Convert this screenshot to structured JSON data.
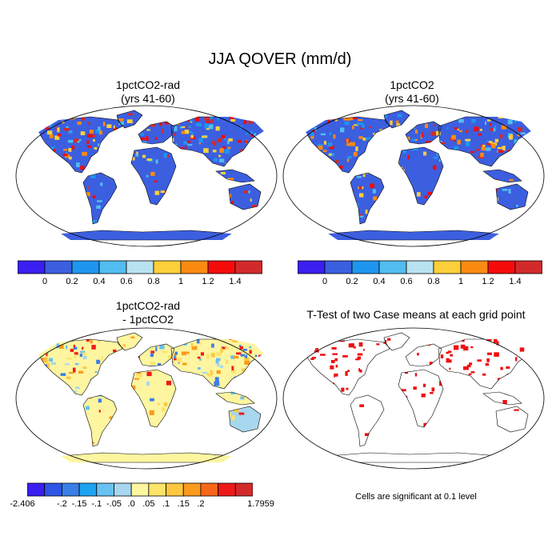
{
  "main_title": "JJA QOVER (mm/d)",
  "panels": [
    {
      "title": "1pctCO2-rad\n(yrs 41-60)",
      "scheme": "abs"
    },
    {
      "title": "1pctCO2\n(yrs 41-60)",
      "scheme": "abs"
    },
    {
      "title": "1pctCO2-rad\n- 1pctCO2",
      "scheme": "diff"
    },
    {
      "title": "T-Test of two Case means at each grid point",
      "scheme": "ttest"
    }
  ],
  "colorbar_abs": {
    "colors": [
      "#3b1ff0",
      "#3c5fe0",
      "#1e96f0",
      "#52bdf0",
      "#b9e2f0",
      "#fdd03a",
      "#fb8a12",
      "#f60b0b",
      "#d22a2a"
    ],
    "labels": [
      "0",
      "0.2",
      "0.4",
      "0.6",
      "0.8",
      "1",
      "1.2",
      "1.4"
    ]
  },
  "colorbar_diff": {
    "colors": [
      "#3b1ff0",
      "#2d55e6",
      "#3a7ee8",
      "#1ea3f0",
      "#68c1f0",
      "#a7d7ee",
      "#fdf5a0",
      "#fde36a",
      "#fdc840",
      "#fb9b1c",
      "#f7671a",
      "#ee1a1a",
      "#d22a2a"
    ],
    "labels": [
      "-2.406",
      "-.2",
      "-.15",
      "-.1",
      "-.05",
      ".0",
      ".05",
      ".1",
      ".15",
      ".2",
      "1.7959"
    ]
  },
  "ttest_color": "#ee1111",
  "note": "Cells are significant at 0.1 level"
}
